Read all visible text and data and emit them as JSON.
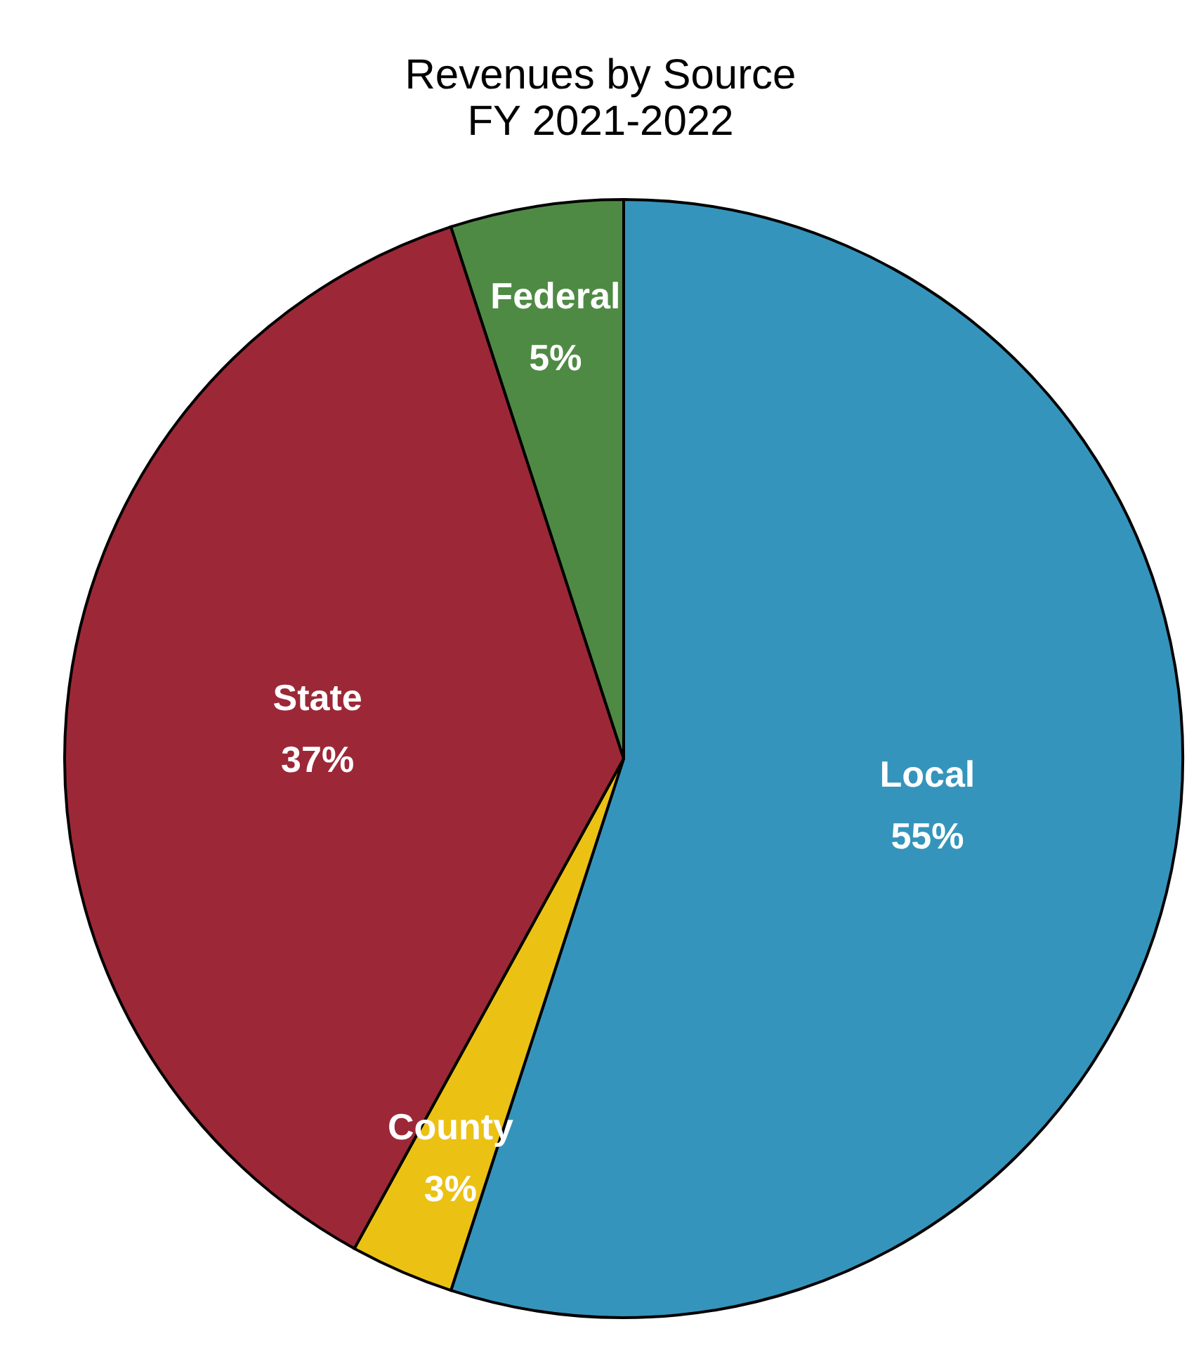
{
  "chart_data": {
    "type": "pie",
    "title": "Revenues by Source",
    "subtitle": "FY 2021-2022",
    "categories": [
      "Local",
      "County",
      "State",
      "Federal"
    ],
    "values": [
      55,
      3,
      37,
      5
    ],
    "value_labels": [
      "55%",
      "3%",
      "37%",
      "5%"
    ],
    "colors": [
      "#3594bb",
      "#ebc114",
      "#9c2837",
      "#4f8a45"
    ]
  }
}
